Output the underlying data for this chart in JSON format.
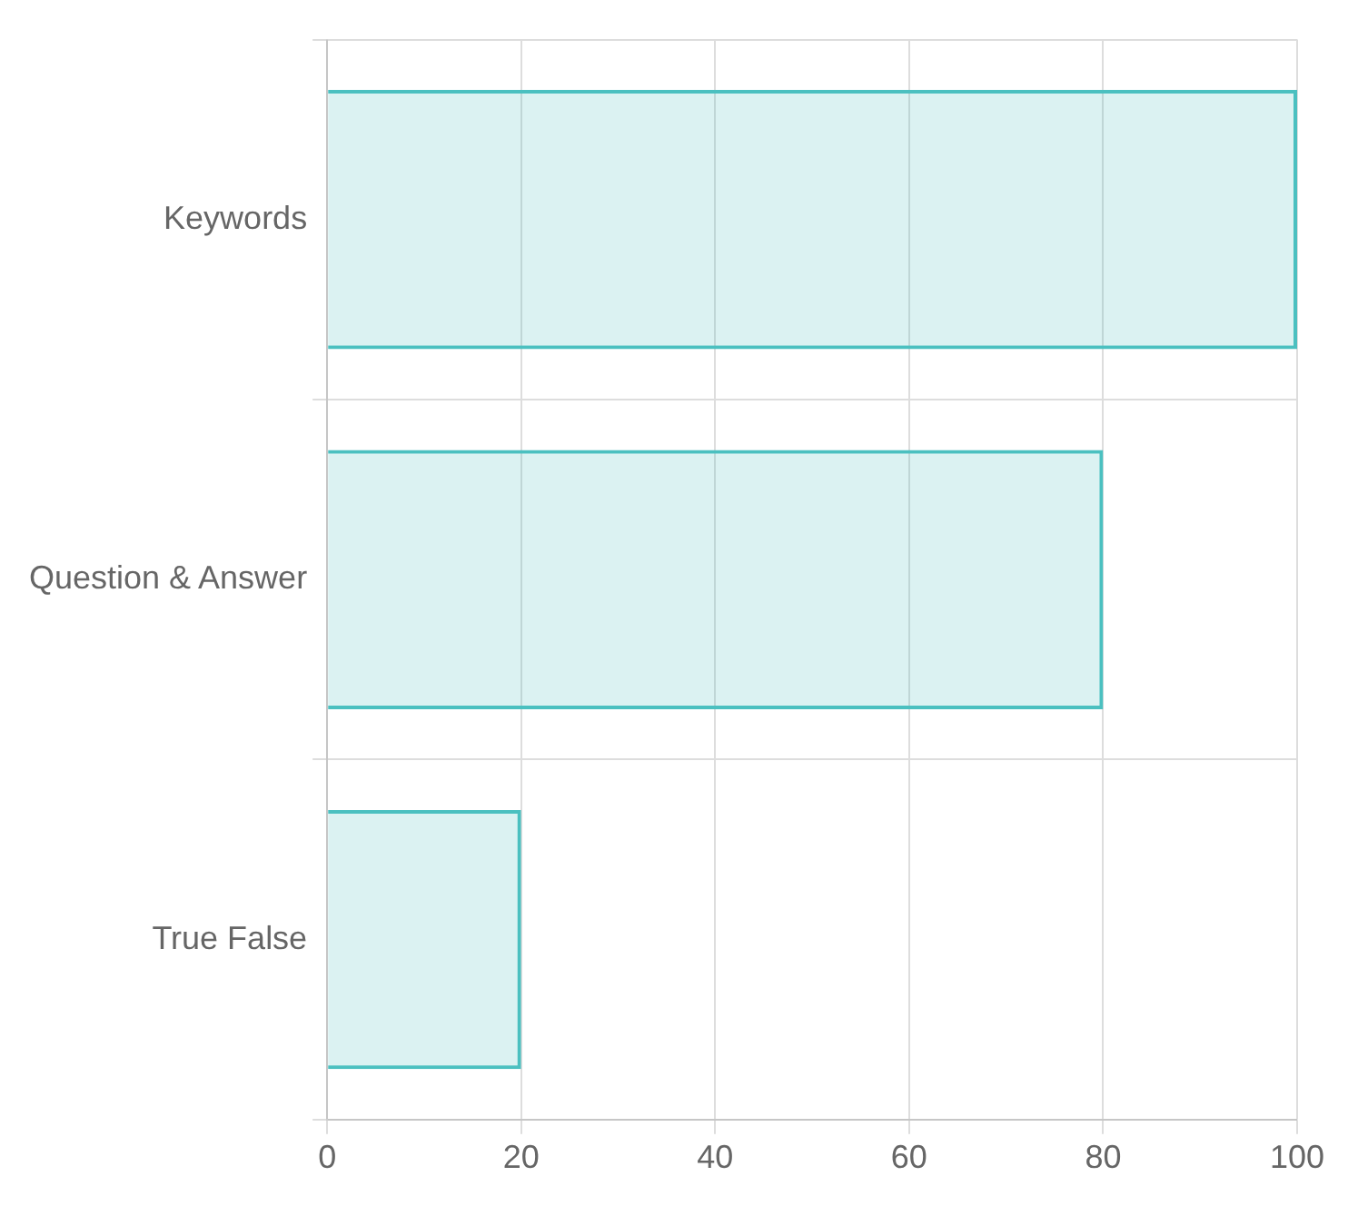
{
  "chart_data": {
    "type": "bar",
    "orientation": "horizontal",
    "categories": [
      "Keywords",
      "Question & Answer",
      "True False"
    ],
    "values": [
      100,
      80,
      20
    ],
    "color": "#4bc0c0",
    "xlim": [
      0,
      100
    ],
    "xticks": [
      0,
      20,
      40,
      60,
      80,
      100
    ],
    "grid": true,
    "legend": false
  }
}
